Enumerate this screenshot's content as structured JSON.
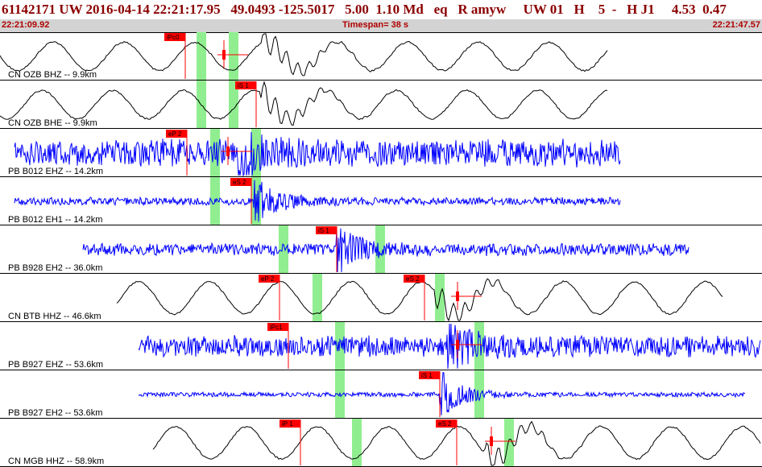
{
  "header": {
    "title": "61142171 UW 2016-04-14 22:21:17.95   49.0493 -125.5017   5.00  1.10 Md   eq   R amyw     UW 01   H    5  -   H J1     4.53  0.47",
    "start_time": "22:21:09.92",
    "timespan": "Timespan=  38 s",
    "end_time": "22:21:47.57"
  },
  "colors": {
    "header_text": "#8b0000",
    "timebar_bg": "#d3d3d3",
    "timebar_text": "#b00000",
    "trace_blue": "#0000ff",
    "trace_black": "#000000",
    "pick_red": "#ff0000",
    "window_green": "#90ee90"
  },
  "traces": [
    {
      "label": "CN OZB BHZ -- 9.9km",
      "color": "black",
      "style": "smooth",
      "x_start": 0,
      "x_end": 755,
      "amp": 22,
      "burst_x": 325,
      "picks": [
        {
          "label": "iPc0",
          "x": 230,
          "arrow": "left"
        },
        {
          "label": "",
          "x": 278,
          "arrow": "tick"
        }
      ],
      "green": [
        250,
        290
      ]
    },
    {
      "label": "CN OZB BHE -- 9.9km",
      "color": "black",
      "style": "smooth",
      "x_start": 0,
      "x_end": 755,
      "amp": 22,
      "burst_x": 322,
      "picks": [
        {
          "label": "iS 1",
          "x": 318,
          "arrow": "left"
        }
      ],
      "green": [
        250,
        290
      ]
    },
    {
      "label": "PB B012 EHZ -- 14.2km",
      "color": "blue",
      "style": "noisy",
      "x_start": 18,
      "x_end": 770,
      "amp": 18,
      "burst_x": 300,
      "picks": [
        {
          "label": "eP 2",
          "x": 232,
          "arrow": "left"
        },
        {
          "label": "",
          "x": 283,
          "arrow": "tick"
        }
      ],
      "green": [
        267,
        318
      ]
    },
    {
      "label": "PB B012 EH1 -- 14.2km",
      "color": "blue",
      "style": "noisy",
      "x_start": 18,
      "x_end": 770,
      "amp": 5,
      "burst_x": 318,
      "picks": [
        {
          "label": "eS 2",
          "x": 312,
          "arrow": "left"
        }
      ],
      "green": [
        267,
        318
      ]
    },
    {
      "label": "PB B928 EH2 -- 36.0km",
      "color": "blue",
      "style": "noisy",
      "x_start": 103,
      "x_end": 855,
      "amp": 8,
      "burst_x": 422,
      "picks": [
        {
          "label": "iS 1",
          "x": 418,
          "arrow": "left"
        }
      ],
      "green": [
        352,
        472
      ]
    },
    {
      "label": "CN BTB HHZ -- 46.6km",
      "color": "black",
      "style": "smooth",
      "x_start": 145,
      "x_end": 897,
      "amp": 25,
      "burst_x": 540,
      "picks": [
        {
          "label": "eP 2",
          "x": 347,
          "arrow": "left"
        },
        {
          "label": "eS 2",
          "x": 527,
          "arrow": "left"
        },
        {
          "label": "",
          "x": 568,
          "arrow": "tick"
        }
      ],
      "green": [
        394,
        546
      ]
    },
    {
      "label": "PB B927 EHZ -- 53.6km",
      "color": "blue",
      "style": "noisy",
      "x_start": 172,
      "x_end": 944,
      "amp": 14,
      "burst_x": 555,
      "picks": [
        {
          "label": "iPc1",
          "x": 358,
          "arrow": "left"
        },
        {
          "label": "",
          "x": 568,
          "arrow": "tick"
        }
      ],
      "green": [
        422,
        595
      ]
    },
    {
      "label": "PB B927 EH2 -- 53.6km",
      "color": "blue",
      "style": "noisy",
      "x_start": 172,
      "x_end": 925,
      "amp": 3,
      "burst_x": 550,
      "picks": [
        {
          "label": "iS 1",
          "x": 546,
          "arrow": "left"
        }
      ],
      "green": [
        422,
        595
      ]
    },
    {
      "label": "CN MGB HHZ -- 58.9km",
      "color": "black",
      "style": "smooth",
      "x_start": 190,
      "x_end": 944,
      "amp": 25,
      "burst_x": 600,
      "picks": [
        {
          "label": "iP 1",
          "x": 373,
          "arrow": "left"
        },
        {
          "label": "eS 2",
          "x": 567,
          "arrow": "left"
        },
        {
          "label": "",
          "x": 610,
          "arrow": "tick"
        }
      ],
      "green": [
        443,
        632
      ]
    }
  ]
}
